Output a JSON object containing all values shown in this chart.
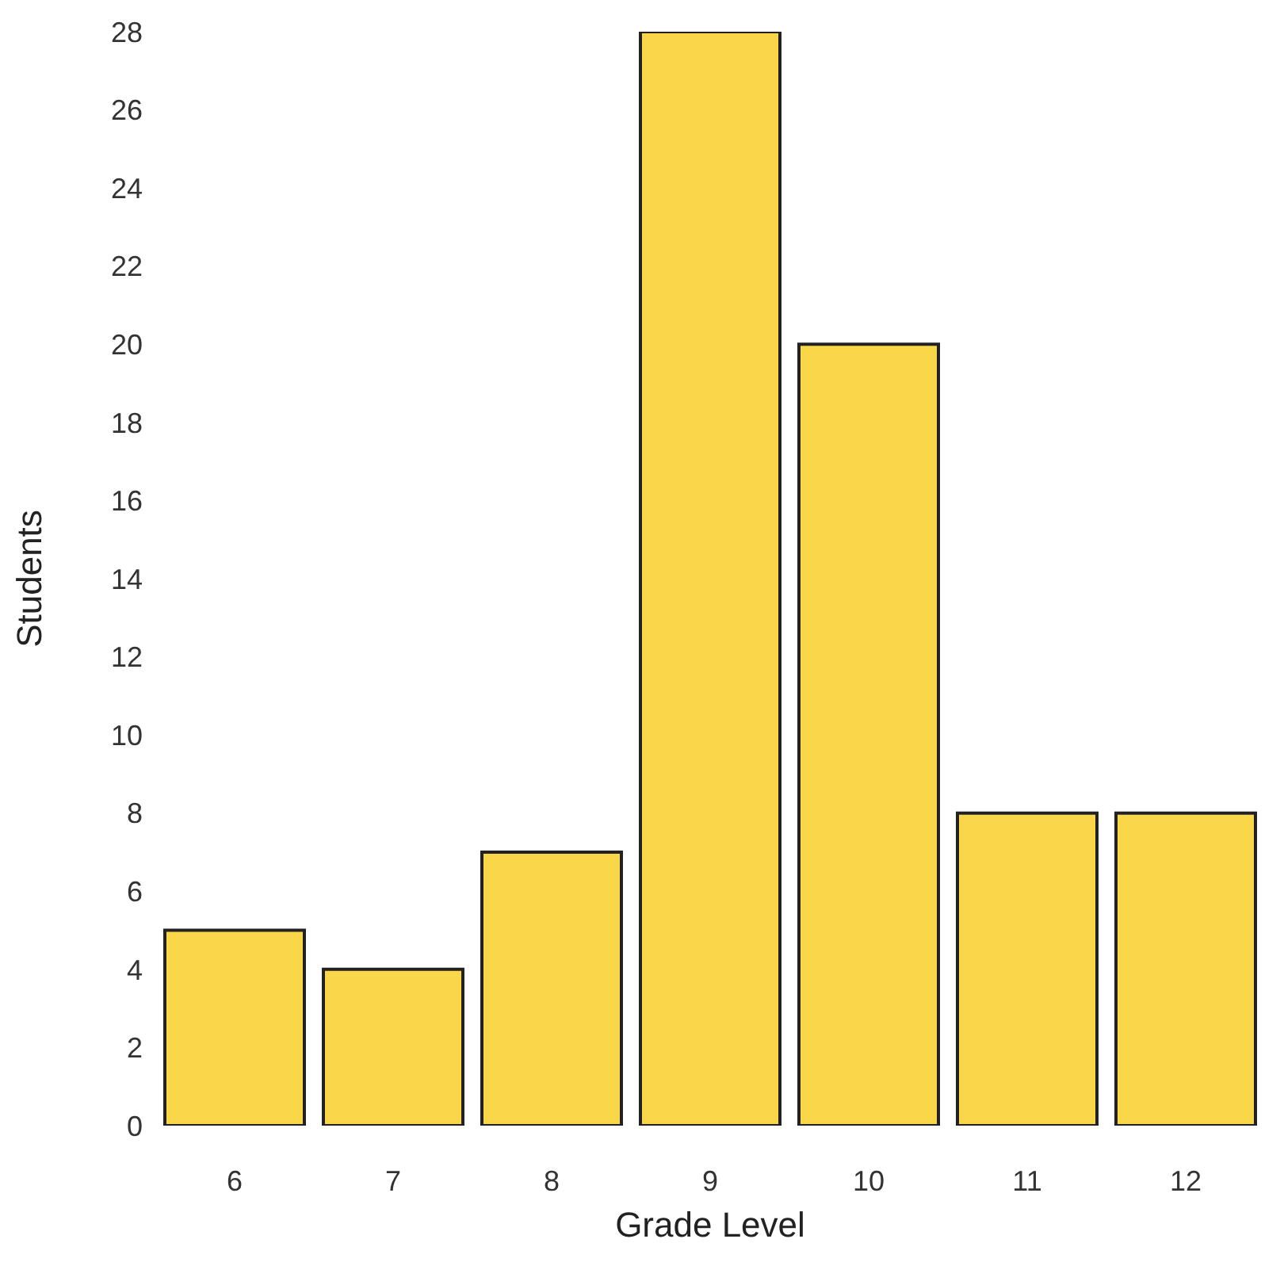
{
  "chart_data": {
    "type": "bar",
    "xlabel": "Grade Level",
    "ylabel": "Students",
    "categories": [
      "6",
      "7",
      "8",
      "9",
      "10",
      "11",
      "12"
    ],
    "values": [
      5,
      4,
      7,
      28,
      20,
      8,
      8
    ],
    "color": "#f9d64a",
    "ylim": [
      0,
      28
    ],
    "yticks": [
      0,
      2,
      4,
      6,
      8,
      10,
      12,
      14,
      16,
      18,
      20,
      22,
      24,
      26,
      28
    ],
    "grid": false
  }
}
